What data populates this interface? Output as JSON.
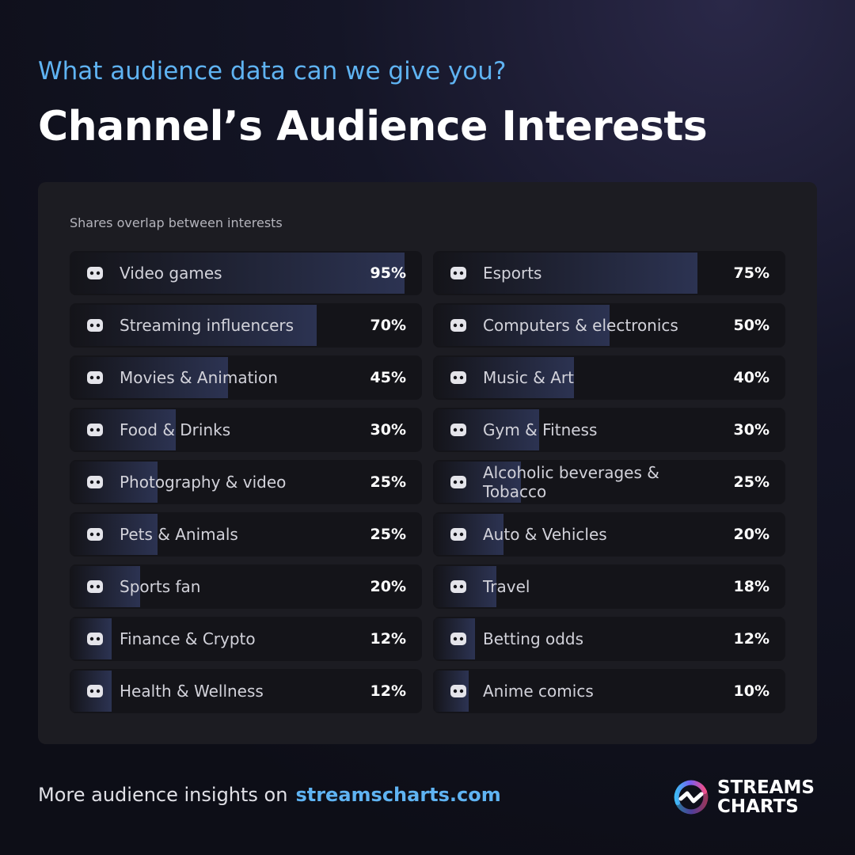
{
  "header": {
    "kicker": "What audience data can we give you?",
    "title": "Channel’s Audience Interests"
  },
  "chart_data": {
    "type": "bar",
    "orientation": "horizontal",
    "subtitle": "Shares overlap between interests",
    "categories": [
      "Video games",
      "Streaming influencers",
      "Movies & Animation",
      "Food & Drinks",
      "Photography & video",
      "Pets & Animals",
      "Sports fan",
      "Finance & Crypto",
      "Health & Wellness",
      "Esports",
      "Computers & electronics",
      "Music & Art",
      "Gym & Fitness",
      "Alcoholic beverages & Tobacco",
      "Auto & Vehicles",
      "Travel",
      "Betting odds",
      "Anime comics"
    ],
    "values": [
      95,
      70,
      45,
      30,
      25,
      25,
      20,
      12,
      12,
      75,
      50,
      40,
      30,
      25,
      20,
      18,
      12,
      10
    ],
    "value_labels": [
      "95%",
      "70%",
      "45%",
      "30%",
      "25%",
      "25%",
      "20%",
      "12%",
      "12%",
      "75%",
      "50%",
      "40%",
      "30%",
      "25%",
      "20%",
      "18%",
      "12%",
      "10%"
    ],
    "xlim": [
      0,
      100
    ],
    "color": "#2c3352"
  },
  "footer": {
    "text": "More audience insights on",
    "link": "streamscharts.com"
  },
  "logo": {
    "line1": "STREAMS",
    "line2": "CHARTS"
  }
}
